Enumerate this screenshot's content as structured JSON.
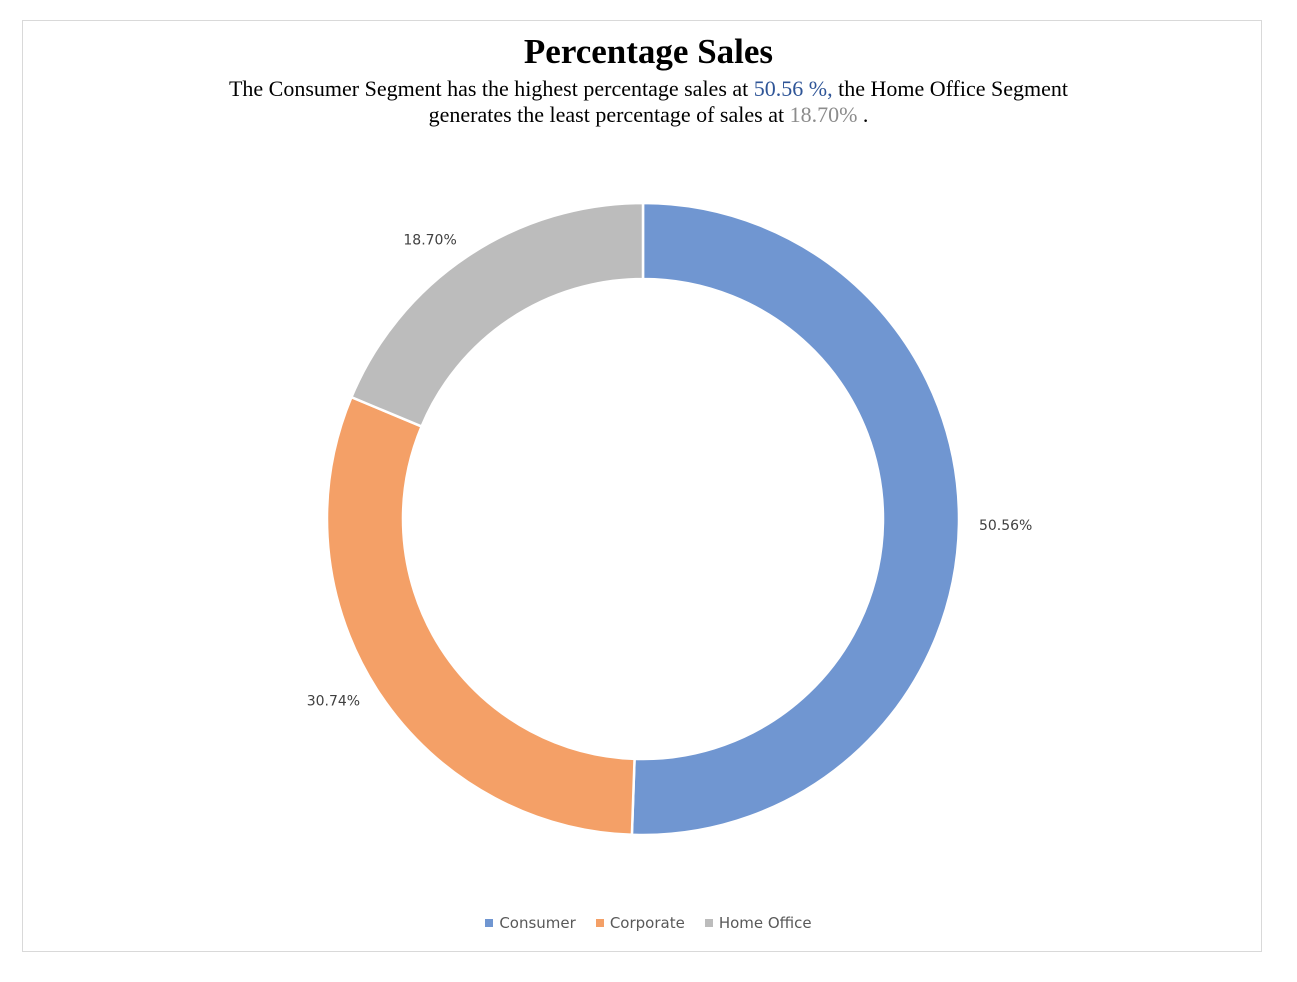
{
  "chart_data": {
    "type": "pie",
    "variant": "donut",
    "title": "Percentage Sales",
    "subtitle": {
      "part1": "The Consumer Segment has the highest  percentage sales at ",
      "highlight1": "50.56 %,",
      "part2": " the Home Office Segment",
      "part3": "generates the least percentage of sales at ",
      "highlight2": "18.70%",
      "part4": " ."
    },
    "categories": [
      "Consumer",
      "Corporate",
      "Home Office"
    ],
    "values": [
      50.56,
      30.74,
      18.7
    ],
    "data_labels": [
      "50.56%",
      "30.74%",
      "18.70%"
    ],
    "colors": [
      "#7096d1",
      "#f4a067",
      "#bcbcbc"
    ],
    "legend_position": "bottom",
    "legend": [
      "Consumer",
      "Corporate",
      "Home Office"
    ]
  }
}
